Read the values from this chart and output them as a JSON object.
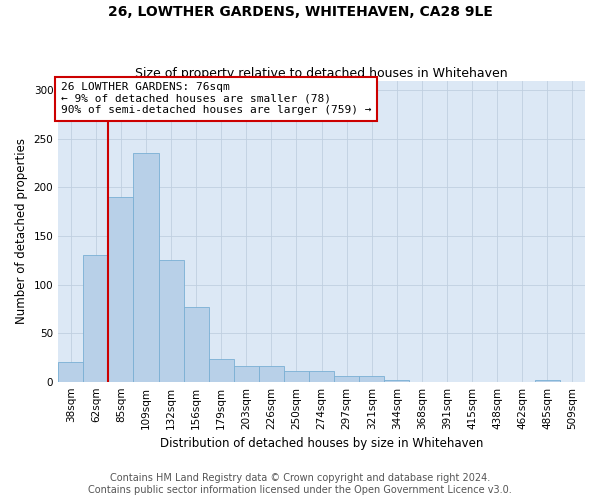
{
  "title": "26, LOWTHER GARDENS, WHITEHAVEN, CA28 9LE",
  "subtitle": "Size of property relative to detached houses in Whitehaven",
  "xlabel": "Distribution of detached houses by size in Whitehaven",
  "ylabel": "Number of detached properties",
  "categories": [
    "38sqm",
    "62sqm",
    "85sqm",
    "109sqm",
    "132sqm",
    "156sqm",
    "179sqm",
    "203sqm",
    "226sqm",
    "250sqm",
    "274sqm",
    "297sqm",
    "321sqm",
    "344sqm",
    "368sqm",
    "391sqm",
    "415sqm",
    "438sqm",
    "462sqm",
    "485sqm",
    "509sqm"
  ],
  "values": [
    20,
    130,
    190,
    236,
    125,
    77,
    23,
    16,
    16,
    11,
    11,
    6,
    6,
    2,
    0,
    0,
    0,
    0,
    0,
    2,
    0
  ],
  "bar_color": "#b8d0e8",
  "bar_edge_color": "#7aafd4",
  "property_line_color": "#cc0000",
  "annotation_line1": "26 LOWTHER GARDENS: 76sqm",
  "annotation_line2": "← 9% of detached houses are smaller (78)",
  "annotation_line3": "90% of semi-detached houses are larger (759) →",
  "annotation_box_color": "#ffffff",
  "annotation_box_edge_color": "#cc0000",
  "ylim": [
    0,
    310
  ],
  "yticks": [
    0,
    50,
    100,
    150,
    200,
    250,
    300
  ],
  "footer_line1": "Contains HM Land Registry data © Crown copyright and database right 2024.",
  "footer_line2": "Contains public sector information licensed under the Open Government Licence v3.0.",
  "bg_color": "#ffffff",
  "plot_bg_color": "#dce8f5",
  "grid_color": "#c0cfe0",
  "title_fontsize": 10,
  "subtitle_fontsize": 9,
  "axis_label_fontsize": 8.5,
  "tick_fontsize": 7.5,
  "annotation_fontsize": 8,
  "footer_fontsize": 7
}
